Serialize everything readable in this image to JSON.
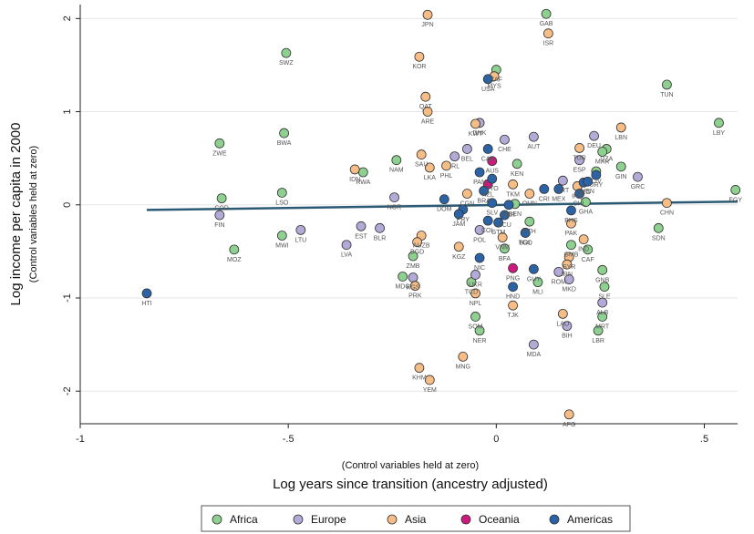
{
  "chart_data": {
    "type": "scatter",
    "xlabel": "Log years since transition (ancestry adjusted)",
    "xlabel_note": "(Control variables held at zero)",
    "ylabel": "Log income per capita in 2000",
    "ylabel_note": "(Control variables held at zero)",
    "xlim": [
      -1.0,
      0.58
    ],
    "ylim": [
      -2.35,
      2.15
    ],
    "x_ticks": [
      -1,
      -0.5,
      0,
      0.5
    ],
    "x_tick_labels": [
      "-1",
      "-.5",
      "0",
      ".5"
    ],
    "y_ticks": [
      -2,
      -1,
      0,
      1,
      2
    ],
    "y_tick_labels": [
      "-2",
      "-1",
      "0",
      "1",
      "2"
    ],
    "grid": "horizontal",
    "legend_position": "bottom",
    "fit_line": {
      "x": [
        -0.84,
        0.58
      ],
      "y": [
        -0.055,
        0.035
      ]
    },
    "series": [
      {
        "name": "Africa",
        "color": "#8dd08f"
      },
      {
        "name": "Europe",
        "color": "#b4aad8"
      },
      {
        "name": "Asia",
        "color": "#f7bd86"
      },
      {
        "name": "Oceania",
        "color": "#cc1a7e"
      },
      {
        "name": "Americas",
        "color": "#2b64a6"
      }
    ],
    "points": [
      {
        "label": "SWZ",
        "region": "Africa",
        "x": -0.505,
        "y": 1.63
      },
      {
        "label": "BWA",
        "region": "Africa",
        "x": -0.51,
        "y": 0.77
      },
      {
        "label": "ZWE",
        "region": "Africa",
        "x": -0.665,
        "y": 0.66
      },
      {
        "label": "NAM",
        "region": "Africa",
        "x": -0.24,
        "y": 0.48
      },
      {
        "label": "RWA",
        "region": "Africa",
        "x": -0.32,
        "y": 0.35
      },
      {
        "label": "LSO",
        "region": "Africa",
        "x": -0.515,
        "y": 0.13
      },
      {
        "label": "COD",
        "region": "Africa",
        "x": -0.66,
        "y": 0.07
      },
      {
        "label": "MWI",
        "region": "Africa",
        "x": -0.515,
        "y": -0.33
      },
      {
        "label": "MOZ",
        "region": "Africa",
        "x": -0.63,
        "y": -0.48
      },
      {
        "label": "MDG",
        "region": "Africa",
        "x": -0.225,
        "y": -0.77
      },
      {
        "label": "ZMB",
        "region": "Africa",
        "x": -0.2,
        "y": -0.55
      },
      {
        "label": "GAB",
        "region": "Africa",
        "x": 0.12,
        "y": 2.05
      },
      {
        "label": "ZAF",
        "region": "Africa",
        "x": 0.0,
        "y": 1.45
      },
      {
        "label": "TUN",
        "region": "Africa",
        "x": 0.41,
        "y": 1.29
      },
      {
        "label": "LBY",
        "region": "Africa",
        "x": 0.535,
        "y": 0.88
      },
      {
        "label": "EGY",
        "region": "Africa",
        "x": 0.575,
        "y": 0.16
      },
      {
        "label": "DZA",
        "region": "Africa",
        "x": 0.265,
        "y": 0.6
      },
      {
        "label": "MAR",
        "region": "Africa",
        "x": 0.255,
        "y": 0.57
      },
      {
        "label": "GIN",
        "region": "Africa",
        "x": 0.3,
        "y": 0.41
      },
      {
        "label": "CIV",
        "region": "Africa",
        "x": 0.24,
        "y": 0.36
      },
      {
        "label": "SDN",
        "region": "Africa",
        "x": 0.39,
        "y": -0.25
      },
      {
        "label": "GHA",
        "region": "Africa",
        "x": 0.215,
        "y": 0.03
      },
      {
        "label": "KEN",
        "region": "Africa",
        "x": 0.05,
        "y": 0.44
      },
      {
        "label": "BEN",
        "region": "Africa",
        "x": 0.045,
        "y": 0.01
      },
      {
        "label": "ETH",
        "region": "Africa",
        "x": 0.08,
        "y": -0.18
      },
      {
        "label": "GMB",
        "region": "Africa",
        "x": 0.18,
        "y": -0.43
      },
      {
        "label": "GNB",
        "region": "Africa",
        "x": 0.255,
        "y": -0.7
      },
      {
        "label": "CAF",
        "region": "Africa",
        "x": 0.22,
        "y": -0.48
      },
      {
        "label": "MLI",
        "region": "Africa",
        "x": 0.1,
        "y": -0.83
      },
      {
        "label": "BFA",
        "region": "Africa",
        "x": 0.02,
        "y": -0.47
      },
      {
        "label": "TCD",
        "region": "Africa",
        "x": -0.06,
        "y": -0.83
      },
      {
        "label": "SOM",
        "region": "Africa",
        "x": -0.05,
        "y": -1.2
      },
      {
        "label": "NER",
        "region": "Africa",
        "x": -0.04,
        "y": -1.35
      },
      {
        "label": "SLE",
        "region": "Africa",
        "x": 0.26,
        "y": -0.88
      },
      {
        "label": "MRT",
        "region": "Africa",
        "x": 0.255,
        "y": -1.2
      },
      {
        "label": "LBR",
        "region": "Africa",
        "x": 0.245,
        "y": -1.35
      },
      {
        "label": "TGO",
        "region": "Africa",
        "x": 0.07,
        "y": -0.3
      },
      {
        "label": "Europe-DNK",
        "region": "Europe",
        "x": -0.04,
        "y": 0.88
      },
      {
        "label": "CHE",
        "region": "Europe",
        "x": 0.02,
        "y": 0.7
      },
      {
        "label": "AUT",
        "region": "Europe",
        "x": 0.09,
        "y": 0.73
      },
      {
        "label": "BEL",
        "region": "Europe",
        "x": -0.07,
        "y": 0.6
      },
      {
        "label": "IRL",
        "region": "Europe",
        "x": -0.1,
        "y": 0.52
      },
      {
        "label": "FIN",
        "region": "Europe",
        "x": -0.665,
        "y": -0.11
      },
      {
        "label": "LTU",
        "region": "Europe",
        "x": -0.47,
        "y": -0.27
      },
      {
        "label": "LVA",
        "region": "Europe",
        "x": -0.36,
        "y": -0.43
      },
      {
        "label": "EST",
        "region": "Europe",
        "x": -0.325,
        "y": -0.23
      },
      {
        "label": "BLR",
        "region": "Europe",
        "x": -0.28,
        "y": -0.25
      },
      {
        "label": "NOR",
        "region": "Europe",
        "x": -0.245,
        "y": 0.08
      },
      {
        "label": "ESP",
        "region": "Europe",
        "x": 0.2,
        "y": 0.48
      },
      {
        "label": "DEU",
        "region": "Europe",
        "x": 0.235,
        "y": 0.74
      },
      {
        "label": "GRC",
        "region": "Europe",
        "x": 0.34,
        "y": 0.3
      },
      {
        "label": "UKR",
        "region": "Europe",
        "x": -0.05,
        "y": -0.75
      },
      {
        "label": "POL",
        "region": "Europe",
        "x": -0.04,
        "y": -0.27
      },
      {
        "label": "ROM",
        "region": "Europe",
        "x": 0.15,
        "y": -0.72
      },
      {
        "label": "MKD",
        "region": "Europe",
        "x": 0.175,
        "y": -0.8
      },
      {
        "label": "BIH",
        "region": "Europe",
        "x": 0.17,
        "y": -1.3
      },
      {
        "label": "MDA",
        "region": "Europe",
        "x": 0.09,
        "y": -1.5
      },
      {
        "label": "ALB",
        "region": "Europe",
        "x": 0.255,
        "y": -1.05
      },
      {
        "label": "KGS",
        "region": "Europe",
        "x": -0.2,
        "y": -0.78
      },
      {
        "label": "PRT",
        "region": "Europe",
        "x": 0.16,
        "y": 0.26
      },
      {
        "label": "JPN",
        "region": "Asia",
        "x": -0.165,
        "y": 2.04
      },
      {
        "label": "ISR",
        "region": "Asia",
        "x": 0.125,
        "y": 1.84
      },
      {
        "label": "KOR",
        "region": "Asia",
        "x": -0.185,
        "y": 1.59
      },
      {
        "label": "MYS",
        "region": "Asia",
        "x": -0.005,
        "y": 1.38
      },
      {
        "label": "QAT",
        "region": "Asia",
        "x": -0.17,
        "y": 1.16
      },
      {
        "label": "ARE",
        "region": "Asia",
        "x": -0.165,
        "y": 1.0
      },
      {
        "label": "KWT",
        "region": "Asia",
        "x": -0.05,
        "y": 0.87
      },
      {
        "label": "SAU",
        "region": "Asia",
        "x": -0.18,
        "y": 0.54
      },
      {
        "label": "IDN",
        "region": "Asia",
        "x": -0.34,
        "y": 0.38
      },
      {
        "label": "LKA",
        "region": "Asia",
        "x": -0.16,
        "y": 0.4
      },
      {
        "label": "PHL",
        "region": "Asia",
        "x": -0.12,
        "y": 0.42
      },
      {
        "label": "TKM",
        "region": "Asia",
        "x": 0.04,
        "y": 0.22
      },
      {
        "label": "OMN",
        "region": "Asia",
        "x": 0.08,
        "y": 0.12
      },
      {
        "label": "LBN",
        "region": "Asia",
        "x": 0.3,
        "y": 0.83
      },
      {
        "label": "TUR",
        "region": "Asia",
        "x": 0.2,
        "y": 0.61
      },
      {
        "label": "CHN",
        "region": "Asia",
        "x": 0.41,
        "y": 0.02
      },
      {
        "label": "IRQ",
        "region": "Asia",
        "x": 0.195,
        "y": 0.2
      },
      {
        "label": "AUZB",
        "region": "Asia",
        "x": -0.18,
        "y": -0.33
      },
      {
        "label": "BGD",
        "region": "Asia",
        "x": -0.19,
        "y": -0.4
      },
      {
        "label": "KGZ",
        "region": "Asia",
        "x": -0.09,
        "y": -0.45
      },
      {
        "label": "VNM",
        "region": "Asia",
        "x": 0.015,
        "y": -0.35
      },
      {
        "label": "NPL",
        "region": "Asia",
        "x": -0.05,
        "y": -0.95
      },
      {
        "label": "TJK",
        "region": "Asia",
        "x": 0.04,
        "y": -1.08
      },
      {
        "label": "LAO",
        "region": "Asia",
        "x": 0.16,
        "y": -1.17
      },
      {
        "label": "MNG",
        "region": "Asia",
        "x": -0.08,
        "y": -1.63
      },
      {
        "label": "KHM",
        "region": "Asia",
        "x": -0.185,
        "y": -1.75
      },
      {
        "label": "YEM",
        "region": "Asia",
        "x": -0.16,
        "y": -1.88
      },
      {
        "label": "AFG",
        "region": "Asia",
        "x": 0.175,
        "y": -2.25
      },
      {
        "label": "SYR",
        "region": "Asia",
        "x": 0.175,
        "y": -0.56
      },
      {
        "label": "IRN",
        "region": "Asia",
        "x": 0.17,
        "y": -0.64
      },
      {
        "label": "IND",
        "region": "Asia",
        "x": 0.21,
        "y": -0.37
      },
      {
        "label": "PAK",
        "region": "Asia",
        "x": 0.18,
        "y": -0.2
      },
      {
        "label": "PRK",
        "region": "Asia",
        "x": -0.195,
        "y": -0.87
      },
      {
        "label": "Asia-CGN",
        "region": "Asia",
        "x": -0.07,
        "y": 0.12
      },
      {
        "label": "NZL",
        "region": "Oceania",
        "x": -0.02,
        "y": 0.22
      },
      {
        "label": "AUS",
        "region": "Oceania",
        "x": -0.01,
        "y": 0.47
      },
      {
        "label": "PNG",
        "region": "Oceania",
        "x": 0.04,
        "y": -0.68
      },
      {
        "label": "USA",
        "region": "Americas",
        "x": -0.02,
        "y": 1.35
      },
      {
        "label": "CAN",
        "region": "Americas",
        "x": -0.02,
        "y": 0.6
      },
      {
        "label": "URY",
        "region": "Americas",
        "x": 0.24,
        "y": 0.32
      },
      {
        "label": "ARG",
        "region": "Americas",
        "x": 0.21,
        "y": 0.24
      },
      {
        "label": "CRI",
        "region": "Americas",
        "x": 0.115,
        "y": 0.17
      },
      {
        "label": "DOM",
        "region": "Americas",
        "x": -0.125,
        "y": 0.06
      },
      {
        "label": "BRA",
        "region": "Americas",
        "x": -0.03,
        "y": 0.15
      },
      {
        "label": "COL",
        "region": "Americas",
        "x": -0.02,
        "y": -0.17
      },
      {
        "label": "PER",
        "region": "Americas",
        "x": 0.03,
        "y": 0.0
      },
      {
        "label": "ECU",
        "region": "Americas",
        "x": 0.02,
        "y": -0.11
      },
      {
        "label": "BOL",
        "region": "Americas",
        "x": 0.07,
        "y": -0.3
      },
      {
        "label": "NIC",
        "region": "Americas",
        "x": -0.04,
        "y": -0.57
      },
      {
        "label": "HND",
        "region": "Americas",
        "x": 0.04,
        "y": -0.88
      },
      {
        "label": "GUY",
        "region": "Americas",
        "x": 0.09,
        "y": -0.69
      },
      {
        "label": "HTI",
        "region": "Americas",
        "x": -0.84,
        "y": -0.95
      },
      {
        "label": "SLV",
        "region": "Americas",
        "x": -0.01,
        "y": 0.02
      },
      {
        "label": "PRY",
        "region": "Americas",
        "x": -0.08,
        "y": -0.05
      },
      {
        "label": "JAM",
        "region": "Americas",
        "x": -0.09,
        "y": -0.1
      },
      {
        "label": "GTM",
        "region": "Americas",
        "x": 0.005,
        "y": -0.19
      },
      {
        "label": "MEX",
        "region": "Americas",
        "x": 0.15,
        "y": 0.17
      },
      {
        "label": "CHL",
        "region": "Americas",
        "x": 0.2,
        "y": 0.12
      },
      {
        "label": "VEN",
        "region": "Americas",
        "x": 0.22,
        "y": 0.25
      },
      {
        "label": "PAN",
        "region": "Americas",
        "x": -0.04,
        "y": 0.35
      },
      {
        "label": "TTO",
        "region": "Americas",
        "x": -0.01,
        "y": 0.28
      },
      {
        "label": "BHS",
        "region": "Americas",
        "x": 0.18,
        "y": -0.06
      }
    ],
    "printed_point_labels": [
      "SWZ",
      "BWA",
      "ZWE",
      "NAM",
      "RWA",
      "LSO",
      "COD",
      "MWI",
      "MOZ",
      "MDG",
      "ZMB",
      "GAB",
      "ZAF",
      "TUN",
      "LBY",
      "EGY",
      "DZA",
      "MAR",
      "GIN",
      "CIV",
      "SDN",
      "GHA",
      "KEN",
      "BEN",
      "ETH",
      "GMB",
      "GNB",
      "CAF",
      "MLI",
      "BFA",
      "TCD",
      "SOM",
      "NER",
      "SLE",
      "MRT",
      "LBR",
      "TGO",
      "DNK",
      "CHE",
      "AUT",
      "BEL",
      "IRL",
      "FIN",
      "LTU",
      "LVA",
      "EST",
      "BLR",
      "NOR",
      "ESP",
      "DEU",
      "GRC",
      "UKR",
      "POL",
      "ROM",
      "MKD",
      "BIH",
      "MDA",
      "ALB",
      "KGS",
      "PRT",
      "JPN",
      "ISR",
      "KOR",
      "MYS",
      "QAT",
      "ARE",
      "KWT",
      "SAU",
      "IDN",
      "LKA",
      "PHL",
      "TKM",
      "OMN",
      "LBN",
      "TUR",
      "CHN",
      "IRQ",
      "AUZB",
      "BGD",
      "KGZ",
      "VNM",
      "NPL",
      "TJK",
      "LAO",
      "MNG",
      "KHM",
      "YEM",
      "AFG",
      "SYR",
      "IRN",
      "IND",
      "PAK",
      "PRK",
      "CGN",
      "NZL",
      "AUS",
      "PNG",
      "USA",
      "CAN",
      "URY",
      "ARG",
      "CRI",
      "DOM",
      "BRA",
      "COL",
      "PER",
      "ECU",
      "BOL",
      "NIC",
      "HND",
      "GUY",
      "HTI",
      "SLV",
      "PRY",
      "JAM",
      "GTM",
      "MEX",
      "CHL",
      "VEN",
      "PAN",
      "TTO",
      "BHS"
    ]
  }
}
